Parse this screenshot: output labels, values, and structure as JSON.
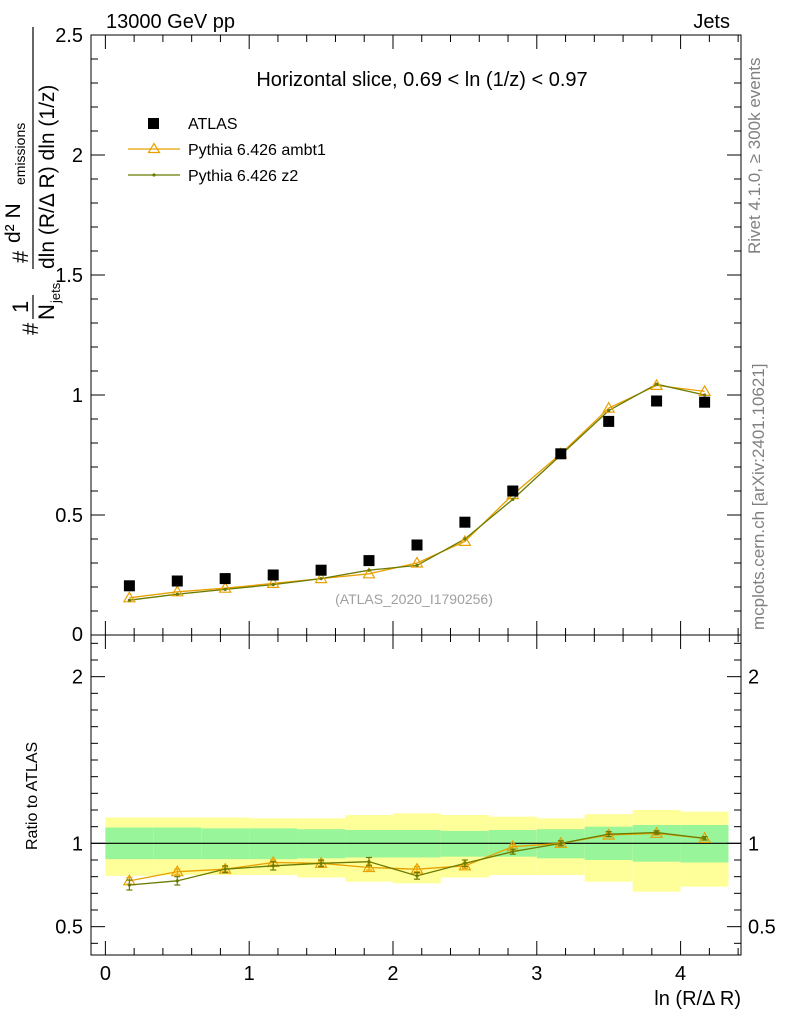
{
  "header": {
    "left": "13000 GeV pp",
    "right": "Jets",
    "side_top": "Rivet 4.1.0, ≥ 300k events",
    "side_bottom": "mcplots.cern.ch [arXiv:2401.10621]"
  },
  "chart_data": [
    {
      "type": "scatter",
      "panel": "main",
      "title": "Horizontal slice, 0.69 < ln (1/z) < 0.97",
      "watermark": "(ATLAS_2020_I1790256)",
      "xlabel": "ln (R/Δ R)",
      "ylabel": "#1/N_jets #d²N_emissions/dln(R/Δ R) dln(1/z)",
      "ylabel_parts": {
        "left_hash": "#",
        "one": "1",
        "n": "N",
        "jets": "jets",
        "top_hash": "#",
        "d2": "d² N",
        "emissions": "emissions",
        "denominator": "dln (R/Δ R) dln (1/z)"
      },
      "xlim": [
        -0.1,
        4.42
      ],
      "ylim": [
        0,
        2.5
      ],
      "yticks": [
        {
          "v": 0.5,
          "label": "0.5"
        },
        {
          "v": 1,
          "label": "1"
        },
        {
          "v": 1.5,
          "label": "1.5"
        },
        {
          "v": 2,
          "label": "2"
        },
        {
          "v": 2.5,
          "label": "2.5"
        }
      ],
      "y_zero_label": "0",
      "legend_position": "top-left",
      "series": [
        {
          "name": "ATLAS",
          "color": "#000000",
          "marker": "square",
          "x": [
            0.167,
            0.5,
            0.833,
            1.167,
            1.5,
            1.833,
            2.167,
            2.5,
            2.833,
            3.167,
            3.5,
            3.833,
            4.167
          ],
          "y": [
            0.205,
            0.225,
            0.235,
            0.25,
            0.27,
            0.31,
            0.375,
            0.47,
            0.6,
            0.755,
            0.89,
            0.975,
            0.97
          ]
        },
        {
          "name": "Pythia 6.426 ambt1",
          "color": "#e8a000",
          "marker": "triangle",
          "x": [
            0.167,
            0.5,
            0.833,
            1.167,
            1.5,
            1.833,
            2.167,
            2.5,
            2.833,
            3.167,
            3.5,
            3.833,
            4.167
          ],
          "y": [
            0.155,
            0.18,
            0.195,
            0.215,
            0.235,
            0.255,
            0.3,
            0.39,
            0.585,
            0.755,
            0.945,
            1.04,
            1.015
          ]
        },
        {
          "name": "Pythia 6.426 z2",
          "color": "#6b7a00",
          "marker": "dot",
          "x": [
            0.167,
            0.5,
            0.833,
            1.167,
            1.5,
            1.833,
            2.167,
            2.5,
            2.833,
            3.167,
            3.5,
            3.833,
            4.167
          ],
          "y": [
            0.145,
            0.17,
            0.19,
            0.21,
            0.235,
            0.27,
            0.29,
            0.4,
            0.565,
            0.75,
            0.935,
            1.045,
            1.0
          ]
        }
      ]
    },
    {
      "type": "line",
      "panel": "ratio",
      "ylabel": "Ratio to ATLAS",
      "xlabel": "ln (R/Δ R)",
      "xlim": [
        -0.1,
        4.42
      ],
      "ylim": [
        0.33,
        2.25
      ],
      "xticks": [
        {
          "v": 0,
          "label": "0"
        },
        {
          "v": 1,
          "label": "1"
        },
        {
          "v": 2,
          "label": "2"
        },
        {
          "v": 3,
          "label": "3"
        },
        {
          "v": 4,
          "label": "4"
        }
      ],
      "yticks": [
        {
          "v": 0.5,
          "label": "0.5"
        },
        {
          "v": 1,
          "label": "1"
        },
        {
          "v": 2,
          "label": "2"
        }
      ],
      "reference_line": 1,
      "bin_edges": [
        0,
        0.333,
        0.667,
        1.0,
        1.333,
        1.667,
        2.0,
        2.333,
        2.667,
        3.0,
        3.333,
        3.667,
        4.0,
        4.333
      ],
      "band_inner_color": "#99f599",
      "band_outer_color": "#ffff99",
      "band_inner_lo": [
        0.905,
        0.905,
        0.905,
        0.905,
        0.91,
        0.915,
        0.915,
        0.92,
        0.92,
        0.91,
        0.9,
        0.89,
        0.885
      ],
      "band_inner_hi": [
        1.095,
        1.095,
        1.09,
        1.09,
        1.085,
        1.08,
        1.08,
        1.075,
        1.08,
        1.085,
        1.1,
        1.11,
        1.11
      ],
      "band_outer_lo": [
        0.805,
        0.81,
        0.81,
        0.81,
        0.795,
        0.77,
        0.76,
        0.795,
        0.81,
        0.81,
        0.77,
        0.71,
        0.74
      ],
      "band_outer_hi": [
        1.155,
        1.155,
        1.155,
        1.15,
        1.15,
        1.17,
        1.18,
        1.17,
        1.16,
        1.15,
        1.175,
        1.2,
        1.19
      ],
      "series": [
        {
          "name": "Pythia 6.426 ambt1",
          "color": "#e8a000",
          "x": [
            0.167,
            0.5,
            0.833,
            1.167,
            1.5,
            1.833,
            2.167,
            2.5,
            2.833,
            3.167,
            3.5,
            3.833,
            4.167
          ],
          "y": [
            0.775,
            0.83,
            0.845,
            0.885,
            0.88,
            0.855,
            0.845,
            0.865,
            0.98,
            1.0,
            1.05,
            1.06,
            1.03
          ],
          "err": [
            0.02,
            0.015,
            0.015,
            0.015,
            0.015,
            0.015,
            0.015,
            0.015,
            0.015,
            0.01,
            0.01,
            0.01,
            0.01
          ]
        },
        {
          "name": "Pythia 6.426 z2",
          "color": "#6b7a00",
          "x": [
            0.167,
            0.5,
            0.833,
            1.167,
            1.5,
            1.833,
            2.167,
            2.5,
            2.833,
            3.167,
            3.5,
            3.833,
            4.167
          ],
          "y": [
            0.75,
            0.775,
            0.845,
            0.865,
            0.88,
            0.89,
            0.805,
            0.88,
            0.95,
            1.0,
            1.055,
            1.065,
            1.03
          ],
          "err": [
            0.03,
            0.025,
            0.02,
            0.025,
            0.02,
            0.025,
            0.02,
            0.02,
            0.015,
            0.015,
            0.015,
            0.01,
            0.01
          ]
        }
      ]
    }
  ]
}
